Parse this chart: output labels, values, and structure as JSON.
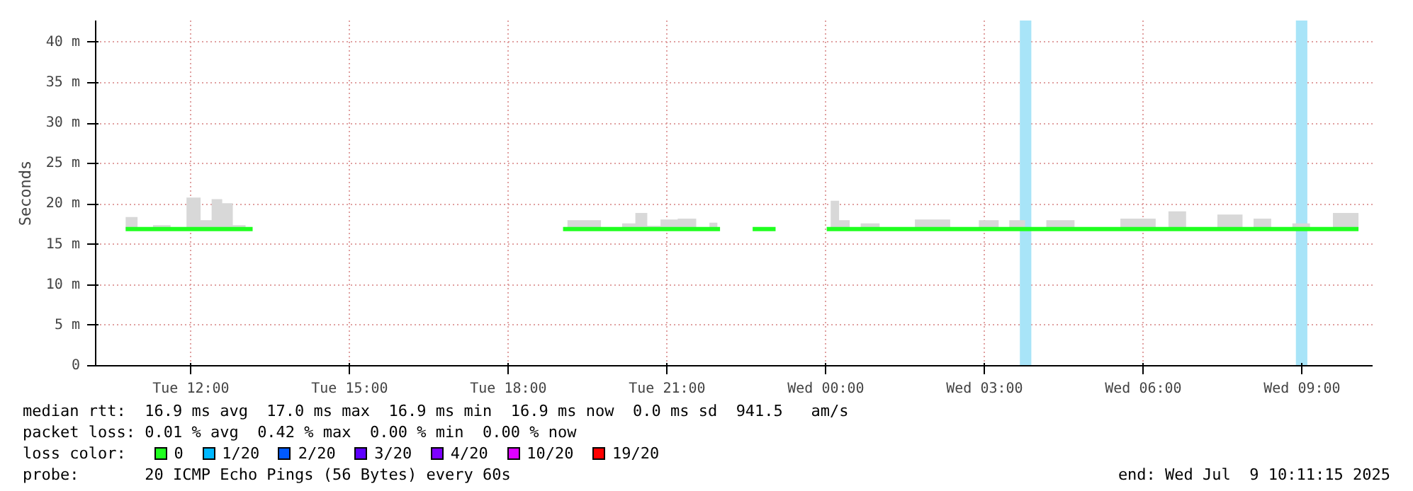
{
  "chart_data": {
    "type": "line",
    "ylabel": "Seconds",
    "xlim": [
      "2025-07-08T10:12",
      "2025-07-09T10:20"
    ],
    "ylim": [
      0,
      42.7
    ],
    "xticks": [
      {
        "value": "2025-07-08T12:00",
        "label": "Tue 12:00"
      },
      {
        "value": "2025-07-08T15:00",
        "label": "Tue 15:00"
      },
      {
        "value": "2025-07-08T18:00",
        "label": "Tue 18:00"
      },
      {
        "value": "2025-07-08T21:00",
        "label": "Tue 21:00"
      },
      {
        "value": "2025-07-09T00:00",
        "label": "Wed 00:00"
      },
      {
        "value": "2025-07-09T03:00",
        "label": "Wed 03:00"
      },
      {
        "value": "2025-07-09T06:00",
        "label": "Wed 06:00"
      },
      {
        "value": "2025-07-09T09:00",
        "label": "Wed 09:00"
      }
    ],
    "yticks": [
      0,
      {
        "value": 5,
        "label": "5 m"
      },
      {
        "value": 10,
        "label": "10 m"
      },
      {
        "value": 15,
        "label": "15 m"
      },
      {
        "value": 20,
        "label": "20 m"
      },
      {
        "value": 25,
        "label": "25 m"
      },
      {
        "value": 30,
        "label": "30 m"
      },
      {
        "value": 35,
        "label": "35 m"
      },
      {
        "value": 40,
        "label": "40 m"
      }
    ],
    "grid": true,
    "legend": "bottom left",
    "legend_title": "loss color:",
    "series": [
      {
        "name": "0",
        "color": "#20ff20",
        "x": [
          "2025-07-08T10:46",
          "2025-07-08T10:54",
          "2025-07-08T11:05",
          "2025-07-08T11:29",
          "2025-07-08T11:45",
          "2025-07-08T12:05",
          "2025-07-08T12:17",
          "2025-07-08T12:30",
          "2025-07-08T12:41",
          "2025-07-08T12:54",
          "2025-07-08T13:10",
          "2025-07-08T13:30",
          "2025-07-08T19:02",
          "2025-07-08T19:12",
          "2025-07-08T19:30",
          "2025-07-08T20:00",
          "2025-07-08T20:18",
          "2025-07-08T20:30",
          "2025-07-08T20:45",
          "2025-07-08T21:00",
          "2025-07-08T21:24",
          "2025-07-08T21:42",
          "2025-07-08T21:54",
          "2025-07-08T22:00",
          "2025-07-08T22:18",
          "2025-07-08T22:37",
          "2025-07-08T23:03",
          "2025-07-08T23:30",
          "2025-07-09T00:01",
          "2025-07-09T00:10",
          "2025-07-09T00:20",
          "2025-07-09T00:34",
          "2025-07-09T00:45",
          "2025-07-09T01:17",
          "2025-07-09T02:05",
          "2025-07-09T02:37",
          "2025-07-09T03:10",
          "2025-07-09T03:22",
          "2025-07-09T03:34",
          "2025-07-09T03:58",
          "2025-07-09T04:22",
          "2025-07-09T05:02",
          "2025-07-09T06:06",
          "2025-07-09T06:22",
          "2025-07-09T06:35",
          "2025-07-09T07:02",
          "2025-07-09T07:46",
          "2025-07-09T07:59",
          "2025-07-09T08:11",
          "2025-07-09T08:39",
          "2025-07-09T08:59",
          "2025-07-09T09:19",
          "2025-07-09T09:51",
          "2025-07-09T10:04"
        ],
        "values": [
          16.9,
          16.9,
          16.9,
          16.9,
          16.9,
          16.9,
          16.9,
          16.9,
          16.9,
          16.9,
          16.9,
          null,
          16.9,
          16.9,
          16.9,
          16.9,
          16.9,
          16.9,
          16.9,
          16.9,
          16.9,
          16.9,
          16.9,
          16.9,
          null,
          16.9,
          16.9,
          null,
          16.9,
          16.9,
          16.9,
          16.9,
          16.9,
          16.9,
          16.9,
          16.9,
          16.9,
          16.9,
          16.9,
          16.9,
          16.9,
          16.9,
          16.9,
          16.9,
          16.9,
          16.9,
          16.9,
          16.9,
          16.9,
          16.9,
          16.9,
          16.9,
          16.9,
          16.9
        ],
        "lower": [
          16.9,
          16.9,
          16.9,
          16.9,
          16.9,
          16.9,
          16.9,
          16.9,
          16.9,
          16.9,
          16.9,
          null,
          16.9,
          16.9,
          16.9,
          16.9,
          16.9,
          16.9,
          16.9,
          16.9,
          16.9,
          16.9,
          16.9,
          16.9,
          null,
          16.9,
          16.9,
          null,
          16.9,
          16.9,
          16.9,
          16.9,
          16.9,
          16.9,
          16.9,
          16.9,
          16.9,
          16.9,
          16.9,
          16.9,
          16.9,
          16.9,
          16.9,
          16.9,
          16.9,
          16.9,
          16.9,
          16.9,
          16.9,
          16.9,
          16.9,
          16.9,
          16.9,
          16.9
        ],
        "upper": [
          18.4,
          18.4,
          16.9,
          17.4,
          16.9,
          20.8,
          18.0,
          20.6,
          20.1,
          17.4,
          16.9,
          null,
          16.9,
          18.0,
          18.0,
          16.9,
          17.6,
          18.9,
          17.3,
          18.1,
          18.2,
          16.9,
          17.7,
          16.9,
          null,
          16.9,
          16.9,
          null,
          16.9,
          20.4,
          18.0,
          16.9,
          17.6,
          16.9,
          18.1,
          16.9,
          18.0,
          16.9,
          18.0,
          16.9,
          18.0,
          16.9,
          18.2,
          16.9,
          19.1,
          16.9,
          18.7,
          16.9,
          18.2,
          16.9,
          17.6,
          16.9,
          18.9,
          18.9
        ]
      },
      {
        "name": "1/20",
        "color": "#00b8ff"
      },
      {
        "name": "2/20",
        "color": "#0059ff"
      },
      {
        "name": "3/20",
        "color": "#5e00ff"
      },
      {
        "name": "4/20",
        "color": "#7e00ff"
      },
      {
        "name": "10/20",
        "color": "#dd00ff"
      },
      {
        "name": "19/20",
        "color": "#ff0000"
      }
    ],
    "bands": [
      {
        "axis": "x",
        "from": "2025-07-09T03:40",
        "to": "2025-07-09T03:53",
        "color": "#a8e4f8"
      },
      {
        "axis": "x",
        "from": "2025-07-09T08:53",
        "to": "2025-07-09T09:06",
        "color": "#a8e4f8"
      }
    ],
    "annotations": [
      "median rtt:  16.9 ms avg  17.0 ms max  16.9 ms min  16.9 ms now  0.0 ms sd  941.5   am/s",
      "packet loss: 0.01 % avg  0.42 % max  0.00 % min  0.00 % now",
      "probe:       20 ICMP Echo Pings (56 Bytes) every 60s",
      "end: Wed Jul  9 10:11:15 2025"
    ]
  }
}
